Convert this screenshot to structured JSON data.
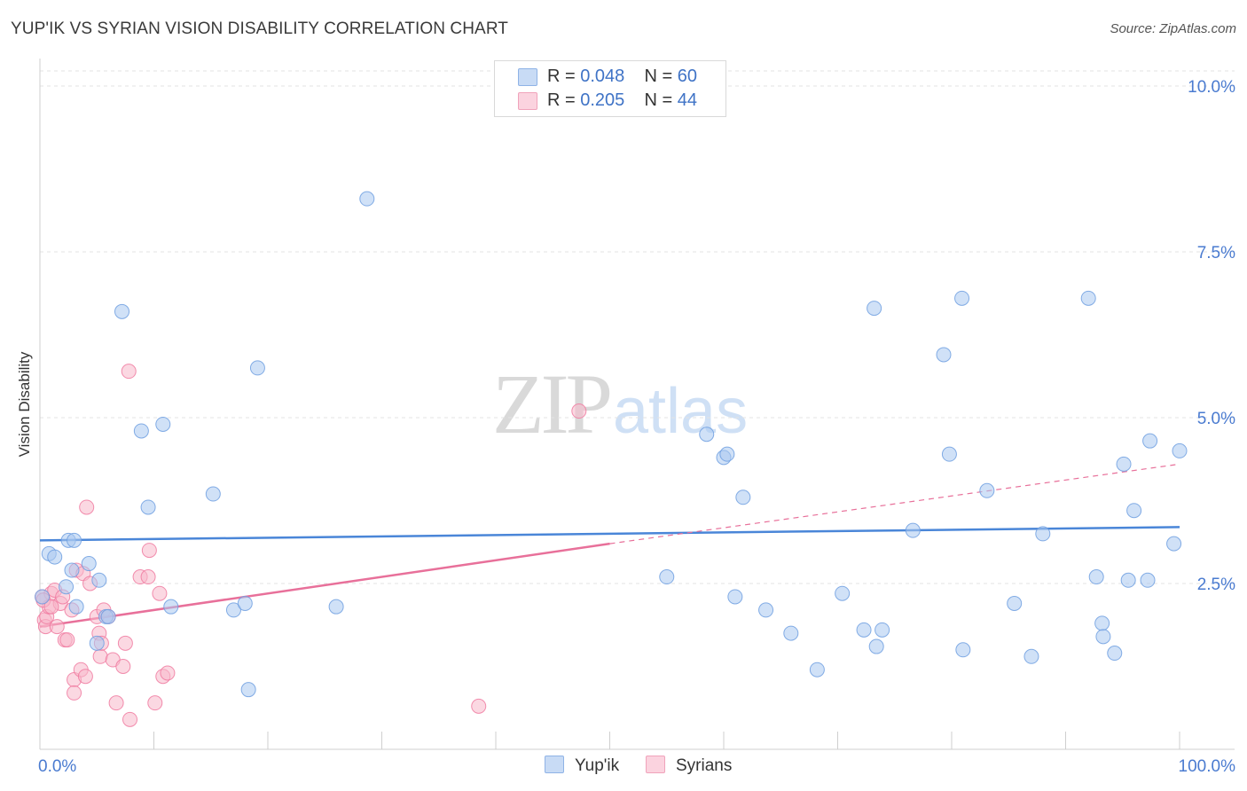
{
  "title": "YUP'IK VS SYRIAN VISION DISABILITY CORRELATION CHART",
  "source": "Source: ZipAtlas.com",
  "watermark": {
    "zip": "ZIP",
    "atlas": "atlas"
  },
  "legend": {
    "rows": [
      {
        "r_label": "R =",
        "r_value": "0.048",
        "n_label": "N =",
        "n_value": "60",
        "color": "#aac8f0"
      },
      {
        "r_label": "R =",
        "r_value": "0.205",
        "n_label": "N =",
        "n_value": "44",
        "color": "#f7b8cb"
      }
    ]
  },
  "chart_data": {
    "type": "scatter",
    "title": "YUP'IK VS SYRIAN VISION DISABILITY CORRELATION CHART",
    "xlabel": "",
    "ylabel": "Vision Disability",
    "xlim": [
      0,
      100
    ],
    "ylim": [
      0,
      10.2
    ],
    "x_tick_labels": [
      "0.0%",
      "100.0%"
    ],
    "y_ticks": [
      2.5,
      5.0,
      7.5,
      10.0
    ],
    "y_tick_labels": [
      "2.5%",
      "5.0%",
      "7.5%",
      "10.0%"
    ],
    "grid": true,
    "legend_position": "top-center",
    "series": [
      {
        "name": "Yup'ik",
        "color": "#4a86d8",
        "fill": "#aac8f0",
        "trend": {
          "x": [
            0,
            100
          ],
          "y": [
            3.15,
            3.35
          ],
          "style": "solid"
        },
        "points": [
          [
            0.2,
            2.3
          ],
          [
            0.8,
            2.95
          ],
          [
            1.3,
            2.9
          ],
          [
            2.3,
            2.45
          ],
          [
            2.5,
            3.15
          ],
          [
            2.8,
            2.7
          ],
          [
            3.0,
            3.15
          ],
          [
            3.2,
            2.15
          ],
          [
            4.3,
            2.8
          ],
          [
            5.2,
            2.55
          ],
          [
            5.8,
            2.0
          ],
          [
            7.2,
            6.6
          ],
          [
            8.9,
            4.8
          ],
          [
            9.5,
            3.65
          ],
          [
            10.8,
            4.9
          ],
          [
            11.5,
            2.15
          ],
          [
            15.2,
            3.85
          ],
          [
            17.0,
            2.1
          ],
          [
            18.0,
            2.2
          ],
          [
            18.3,
            0.9
          ],
          [
            19.1,
            5.75
          ],
          [
            26.0,
            2.15
          ],
          [
            28.7,
            8.3
          ],
          [
            5.0,
            1.6
          ],
          [
            6.0,
            2.0
          ],
          [
            55.0,
            2.6
          ],
          [
            58.5,
            4.75
          ],
          [
            60.0,
            4.4
          ],
          [
            60.3,
            4.45
          ],
          [
            61.0,
            2.3
          ],
          [
            61.7,
            3.8
          ],
          [
            63.7,
            2.1
          ],
          [
            65.9,
            1.75
          ],
          [
            68.2,
            1.2
          ],
          [
            70.4,
            2.35
          ],
          [
            72.3,
            1.8
          ],
          [
            73.2,
            6.65
          ],
          [
            73.4,
            1.55
          ],
          [
            73.9,
            1.8
          ],
          [
            76.6,
            3.3
          ],
          [
            79.3,
            5.95
          ],
          [
            79.8,
            4.45
          ],
          [
            80.9,
            6.8
          ],
          [
            81.0,
            1.5
          ],
          [
            83.1,
            3.9
          ],
          [
            85.5,
            2.2
          ],
          [
            87.0,
            1.4
          ],
          [
            88.0,
            3.25
          ],
          [
            92.0,
            6.8
          ],
          [
            92.7,
            2.6
          ],
          [
            93.2,
            1.9
          ],
          [
            93.3,
            1.7
          ],
          [
            94.3,
            1.45
          ],
          [
            95.1,
            4.3
          ],
          [
            95.5,
            2.55
          ],
          [
            96.0,
            3.6
          ],
          [
            97.2,
            2.55
          ],
          [
            97.4,
            4.65
          ],
          [
            99.5,
            3.1
          ],
          [
            100.0,
            4.5
          ]
        ]
      },
      {
        "name": "Syrians",
        "color": "#e8709a",
        "fill": "#f7b8cb",
        "trend": {
          "x": [
            0,
            50,
            100
          ],
          "y": [
            1.85,
            3.1,
            4.3
          ],
          "solid_until": 50
        },
        "points": [
          [
            0.2,
            2.3
          ],
          [
            0.4,
            1.95
          ],
          [
            0.5,
            1.85
          ],
          [
            0.6,
            2.0
          ],
          [
            0.8,
            2.15
          ],
          [
            1.0,
            2.35
          ],
          [
            1.3,
            2.4
          ],
          [
            1.5,
            1.85
          ],
          [
            1.8,
            2.2
          ],
          [
            2.0,
            2.3
          ],
          [
            2.2,
            1.65
          ],
          [
            2.4,
            1.65
          ],
          [
            2.8,
            2.1
          ],
          [
            3.0,
            1.05
          ],
          [
            3.0,
            0.85
          ],
          [
            3.2,
            2.7
          ],
          [
            3.6,
            1.2
          ],
          [
            3.8,
            2.65
          ],
          [
            4.0,
            1.1
          ],
          [
            4.1,
            3.65
          ],
          [
            4.4,
            2.5
          ],
          [
            5.0,
            2.0
          ],
          [
            5.2,
            1.75
          ],
          [
            5.3,
            1.4
          ],
          [
            5.4,
            1.6
          ],
          [
            5.6,
            2.1
          ],
          [
            6.0,
            2.0
          ],
          [
            6.4,
            1.35
          ],
          [
            6.7,
            0.7
          ],
          [
            7.3,
            1.25
          ],
          [
            7.5,
            1.6
          ],
          [
            7.8,
            5.7
          ],
          [
            7.9,
            0.45
          ],
          [
            8.8,
            2.6
          ],
          [
            9.5,
            2.6
          ],
          [
            9.6,
            3.0
          ],
          [
            10.1,
            0.7
          ],
          [
            10.5,
            2.35
          ],
          [
            10.8,
            1.1
          ],
          [
            11.2,
            1.15
          ],
          [
            0.3,
            2.25
          ],
          [
            1.0,
            2.15
          ],
          [
            38.5,
            0.65
          ],
          [
            47.3,
            5.1
          ]
        ]
      }
    ]
  }
}
